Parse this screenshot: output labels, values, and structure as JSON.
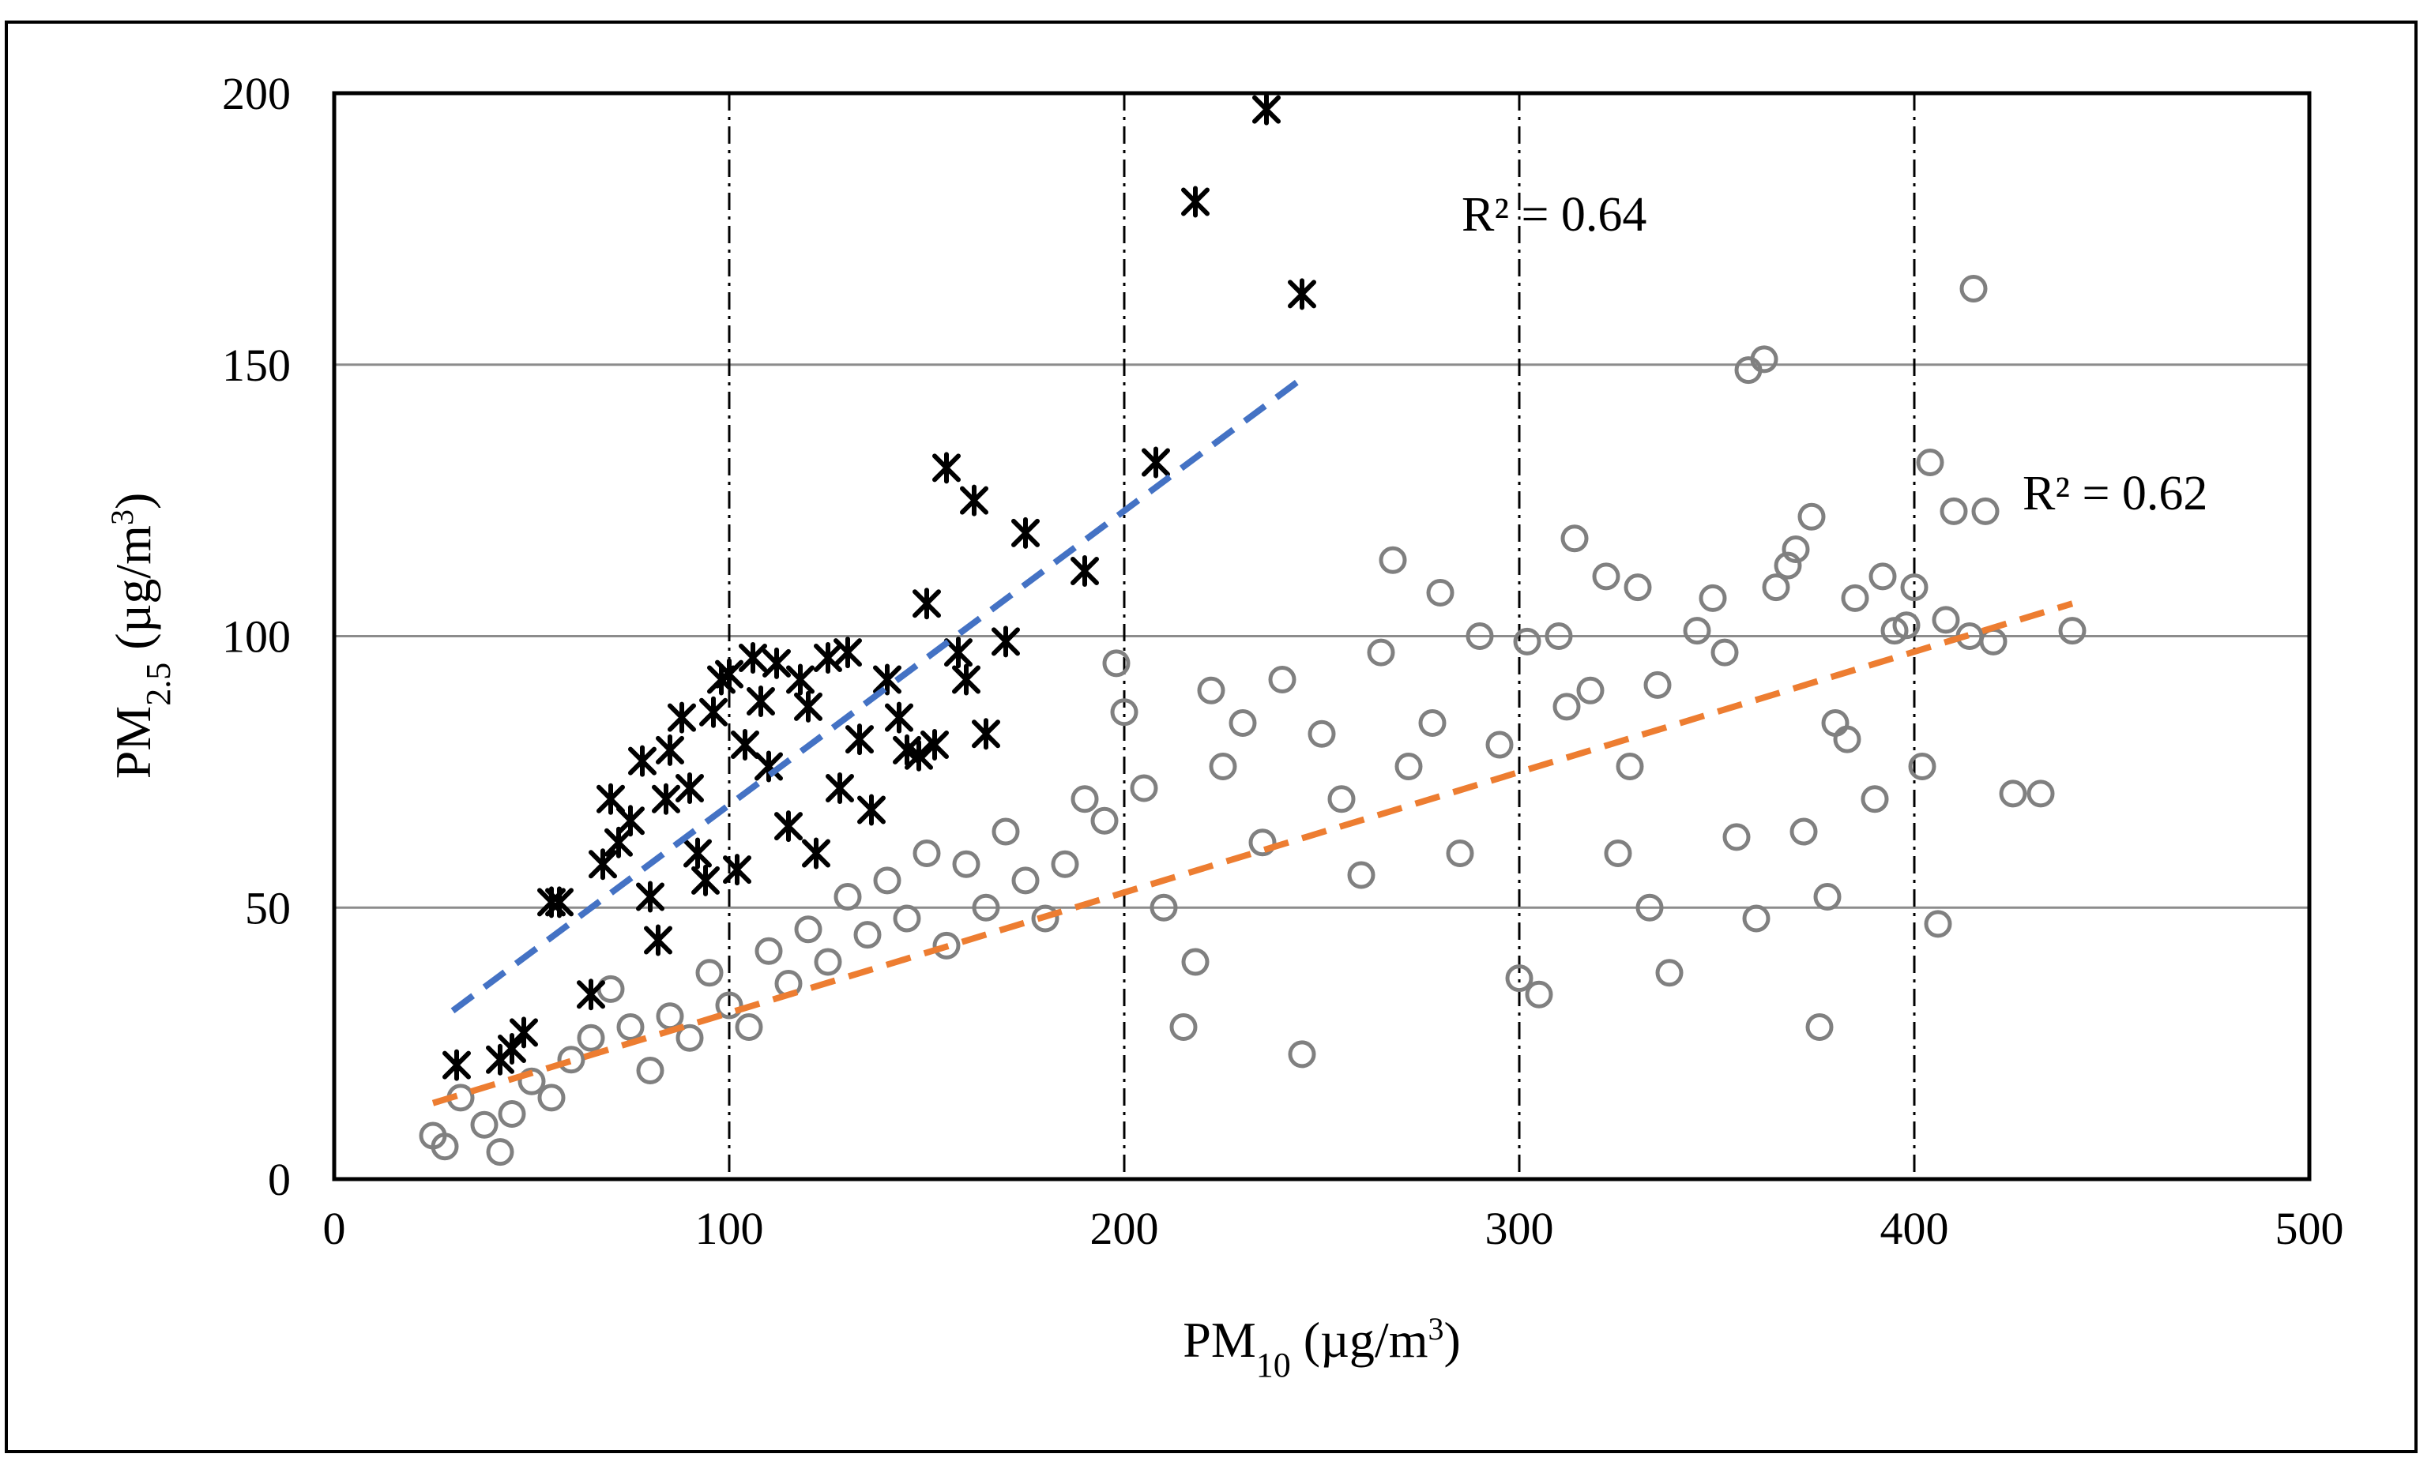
{
  "chart_data": {
    "type": "scatter",
    "title": "",
    "xlabel": {
      "base": "PM",
      "sub": "10",
      "unit": "(µg/m",
      "sup": "3",
      "close": ")"
    },
    "ylabel": {
      "base": "PM",
      "sub": "2.5",
      "unit": "(µg/m",
      "sup": "3",
      "close": ")"
    },
    "xlim": [
      0,
      500
    ],
    "ylim": [
      0,
      200
    ],
    "xticks": [
      "0",
      "100",
      "200",
      "300",
      "400",
      "500"
    ],
    "yticks": [
      "0",
      "50",
      "100",
      "150",
      "200"
    ],
    "grid": {
      "horizontal": "solid gray",
      "vertical": "dash-dot black at 100,200,300,400"
    },
    "legend": "none",
    "colors": {
      "circles": "#808080",
      "stars": "#000000",
      "blue_trend": "#4472C4",
      "orange_trend": "#ED7D31",
      "hgrid": "#8c8c8c"
    },
    "series": [
      {
        "name": "cross-markers",
        "marker": "asterisk",
        "points": [
          [
            31,
            21
          ],
          [
            42,
            22
          ],
          [
            45,
            24
          ],
          [
            48,
            27
          ],
          [
            55,
            51
          ],
          [
            57,
            51
          ],
          [
            65,
            34
          ],
          [
            68,
            58
          ],
          [
            70,
            70
          ],
          [
            72,
            62
          ],
          [
            75,
            66
          ],
          [
            78,
            77
          ],
          [
            80,
            52
          ],
          [
            82,
            44
          ],
          [
            84,
            70
          ],
          [
            85,
            79
          ],
          [
            88,
            85
          ],
          [
            90,
            72
          ],
          [
            92,
            60
          ],
          [
            94,
            55
          ],
          [
            96,
            86
          ],
          [
            98,
            92
          ],
          [
            100,
            93
          ],
          [
            102,
            57
          ],
          [
            104,
            80
          ],
          [
            106,
            96
          ],
          [
            108,
            88
          ],
          [
            110,
            76
          ],
          [
            112,
            95
          ],
          [
            115,
            65
          ],
          [
            118,
            92
          ],
          [
            120,
            87
          ],
          [
            122,
            60
          ],
          [
            125,
            96
          ],
          [
            128,
            72
          ],
          [
            130,
            97
          ],
          [
            133,
            81
          ],
          [
            136,
            68
          ],
          [
            140,
            92
          ],
          [
            143,
            85
          ],
          [
            145,
            79
          ],
          [
            148,
            78
          ],
          [
            150,
            106
          ],
          [
            152,
            80
          ],
          [
            155,
            131
          ],
          [
            158,
            97
          ],
          [
            160,
            92
          ],
          [
            162,
            125
          ],
          [
            165,
            82
          ],
          [
            170,
            99
          ],
          [
            175,
            119
          ],
          [
            190,
            112
          ],
          [
            208,
            132
          ],
          [
            218,
            180
          ],
          [
            236,
            197
          ],
          [
            245,
            163
          ]
        ]
      },
      {
        "name": "circle-markers",
        "marker": "open-circle",
        "points": [
          [
            25,
            8
          ],
          [
            28,
            6
          ],
          [
            32,
            15
          ],
          [
            38,
            10
          ],
          [
            42,
            5
          ],
          [
            45,
            12
          ],
          [
            50,
            18
          ],
          [
            55,
            15
          ],
          [
            60,
            22
          ],
          [
            65,
            26
          ],
          [
            70,
            35
          ],
          [
            75,
            28
          ],
          [
            80,
            20
          ],
          [
            85,
            30
          ],
          [
            90,
            26
          ],
          [
            95,
            38
          ],
          [
            100,
            32
          ],
          [
            105,
            28
          ],
          [
            110,
            42
          ],
          [
            115,
            36
          ],
          [
            120,
            46
          ],
          [
            125,
            40
          ],
          [
            130,
            52
          ],
          [
            135,
            45
          ],
          [
            140,
            55
          ],
          [
            145,
            48
          ],
          [
            150,
            60
          ],
          [
            155,
            43
          ],
          [
            160,
            58
          ],
          [
            165,
            50
          ],
          [
            170,
            64
          ],
          [
            175,
            55
          ],
          [
            180,
            48
          ],
          [
            185,
            58
          ],
          [
            190,
            70
          ],
          [
            195,
            66
          ],
          [
            198,
            95
          ],
          [
            200,
            86
          ],
          [
            205,
            72
          ],
          [
            210,
            50
          ],
          [
            215,
            28
          ],
          [
            218,
            40
          ],
          [
            222,
            90
          ],
          [
            225,
            76
          ],
          [
            230,
            84
          ],
          [
            235,
            62
          ],
          [
            240,
            92
          ],
          [
            245,
            23
          ],
          [
            250,
            82
          ],
          [
            255,
            70
          ],
          [
            260,
            56
          ],
          [
            265,
            97
          ],
          [
            268,
            114
          ],
          [
            272,
            76
          ],
          [
            278,
            84
          ],
          [
            280,
            108
          ],
          [
            285,
            60
          ],
          [
            290,
            100
          ],
          [
            295,
            80
          ],
          [
            300,
            37
          ],
          [
            302,
            99
          ],
          [
            305,
            34
          ],
          [
            310,
            100
          ],
          [
            312,
            87
          ],
          [
            314,
            118
          ],
          [
            318,
            90
          ],
          [
            322,
            111
          ],
          [
            325,
            60
          ],
          [
            328,
            76
          ],
          [
            330,
            109
          ],
          [
            333,
            50
          ],
          [
            335,
            91
          ],
          [
            338,
            38
          ],
          [
            345,
            101
          ],
          [
            349,
            107
          ],
          [
            352,
            97
          ],
          [
            355,
            63
          ],
          [
            360,
            48
          ],
          [
            362,
            151
          ],
          [
            358,
            149
          ],
          [
            365,
            109
          ],
          [
            368,
            113
          ],
          [
            370,
            116
          ],
          [
            372,
            64
          ],
          [
            374,
            122
          ],
          [
            376,
            28
          ],
          [
            378,
            52
          ],
          [
            380,
            84
          ],
          [
            383,
            81
          ],
          [
            385,
            107
          ],
          [
            390,
            70
          ],
          [
            392,
            111
          ],
          [
            395,
            101
          ],
          [
            398,
            102
          ],
          [
            400,
            109
          ],
          [
            402,
            76
          ],
          [
            404,
            132
          ],
          [
            406,
            47
          ],
          [
            408,
            103
          ],
          [
            410,
            123
          ],
          [
            414,
            100
          ],
          [
            415,
            164
          ],
          [
            418,
            123
          ],
          [
            420,
            99
          ],
          [
            425,
            71
          ],
          [
            432,
            71
          ],
          [
            440,
            101
          ]
        ]
      }
    ],
    "trendlines": [
      {
        "name": "blue",
        "x": [
          30,
          246
        ],
        "y": [
          31,
          148
        ],
        "r2_label": "R² = 0.64"
      },
      {
        "name": "orange",
        "x": [
          25,
          440
        ],
        "y": [
          14,
          106
        ],
        "r2_label": "R² = 0.62"
      }
    ]
  }
}
